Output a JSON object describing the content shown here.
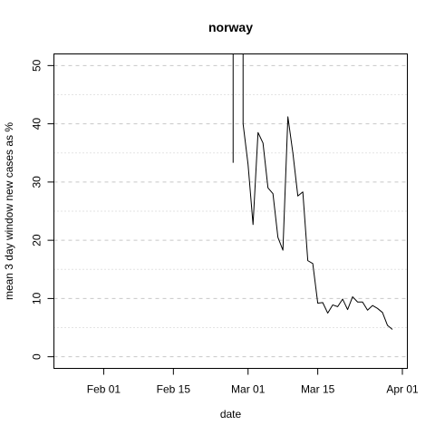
{
  "chart_data": {
    "type": "line",
    "title": "norway",
    "xlabel": "date",
    "ylabel": "mean  3  day window new cases as %",
    "x_ticks": [
      "Feb 01",
      "Feb 15",
      "Mar 01",
      "Mar 15",
      "Apr 01"
    ],
    "x_tick_dates": [
      "2020-02-01",
      "2020-02-15",
      "2020-03-01",
      "2020-03-15",
      "2020-04-01"
    ],
    "y_ticks": [
      0,
      10,
      20,
      30,
      40,
      50
    ],
    "xlim": [
      "2020-01-22",
      "2020-04-02"
    ],
    "ylim": [
      -2,
      52
    ],
    "grid": {
      "major_dashed": [
        0,
        10,
        20,
        30,
        40,
        50
      ],
      "minor_dotted": [
        5,
        15,
        25,
        35,
        45
      ]
    },
    "series": [
      {
        "color": "#000000",
        "points": [
          [
            "2020-02-27",
            33.3
          ],
          [
            "2020-02-27",
            60
          ],
          [
            "2020-02-29",
            60
          ],
          [
            "2020-02-29",
            40.0
          ],
          [
            "2020-03-01",
            33.0
          ],
          [
            "2020-03-02",
            22.7
          ],
          [
            "2020-03-03",
            38.5
          ],
          [
            "2020-03-04",
            36.7
          ],
          [
            "2020-03-05",
            29.0
          ],
          [
            "2020-03-06",
            28.0
          ],
          [
            "2020-03-07",
            20.5
          ],
          [
            "2020-03-08",
            18.3
          ],
          [
            "2020-03-09",
            41.2
          ],
          [
            "2020-03-10",
            35.0
          ],
          [
            "2020-03-11",
            27.6
          ],
          [
            "2020-03-12",
            28.3
          ],
          [
            "2020-03-13",
            16.5
          ],
          [
            "2020-03-14",
            16.0
          ],
          [
            "2020-03-15",
            9.2
          ],
          [
            "2020-03-16",
            9.3
          ],
          [
            "2020-03-17",
            7.5
          ],
          [
            "2020-03-18",
            8.9
          ],
          [
            "2020-03-19",
            8.6
          ],
          [
            "2020-03-20",
            9.9
          ],
          [
            "2020-03-21",
            8.1
          ],
          [
            "2020-03-22",
            10.3
          ],
          [
            "2020-03-23",
            9.4
          ],
          [
            "2020-03-24",
            9.4
          ],
          [
            "2020-03-25",
            8.0
          ],
          [
            "2020-03-26",
            8.8
          ],
          [
            "2020-03-27",
            8.3
          ],
          [
            "2020-03-28",
            7.6
          ],
          [
            "2020-03-29",
            5.4
          ],
          [
            "2020-03-30",
            4.7
          ]
        ]
      }
    ]
  }
}
